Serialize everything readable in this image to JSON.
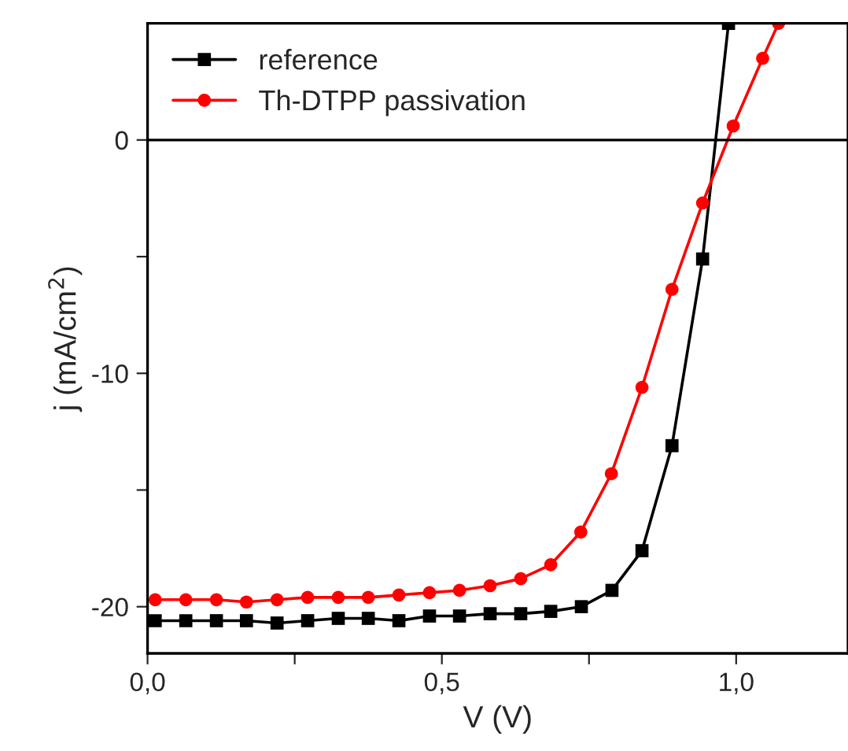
{
  "chart_data": {
    "type": "line",
    "xlabel": "V (V)",
    "ylabel": "j (mA/cm$^{2}$)",
    "series": [
      {
        "name": "reference",
        "color": "#000000",
        "marker": "square",
        "x": [
          0.013,
          0.065,
          0.117,
          0.168,
          0.22,
          0.272,
          0.324,
          0.375,
          0.427,
          0.479,
          0.53,
          0.582,
          0.634,
          0.685,
          0.737,
          0.789,
          0.84,
          0.891,
          0.943,
          0.987
        ],
        "values": [
          -20.6,
          -20.6,
          -20.6,
          -20.6,
          -20.7,
          -20.6,
          -20.5,
          -20.5,
          -20.6,
          -20.4,
          -20.4,
          -20.3,
          -20.3,
          -20.2,
          -20.0,
          -19.3,
          -17.6,
          -13.1,
          -5.1,
          5.0
        ]
      },
      {
        "name": "Th-DTPP passivation",
        "color": "#ff0000",
        "marker": "circle",
        "x": [
          0.013,
          0.065,
          0.117,
          0.168,
          0.22,
          0.272,
          0.324,
          0.375,
          0.427,
          0.479,
          0.53,
          0.582,
          0.634,
          0.685,
          0.736,
          0.788,
          0.84,
          0.891,
          0.943,
          0.995,
          1.045,
          1.072
        ],
        "values": [
          -19.7,
          -19.7,
          -19.7,
          -19.8,
          -19.7,
          -19.6,
          -19.6,
          -19.6,
          -19.5,
          -19.4,
          -19.3,
          -19.1,
          -18.8,
          -18.2,
          -16.8,
          -14.3,
          -10.6,
          -6.4,
          -2.7,
          0.6,
          3.5,
          5.0
        ]
      }
    ],
    "xlim": [
      0,
      1.19
    ],
    "ylim": [
      -22,
      5
    ],
    "xticks": [
      {
        "value": 0,
        "label": "0,0"
      },
      {
        "value": 0.25,
        "label": null
      },
      {
        "value": 0.5,
        "label": "0,5"
      },
      {
        "value": 0.75,
        "label": null
      },
      {
        "value": 1.0,
        "label": "1,0"
      }
    ],
    "yticks": [
      {
        "value": -20,
        "label": "-20"
      },
      {
        "value": -15,
        "label": null
      },
      {
        "value": -10,
        "label": "-10"
      },
      {
        "value": -5,
        "label": null
      },
      {
        "value": 0,
        "label": "0"
      }
    ],
    "ref_lines": [
      {
        "axis": "y",
        "value": 0,
        "color": "#000000"
      }
    ],
    "grid": false,
    "legend": "top left",
    "line_style": "solid"
  }
}
